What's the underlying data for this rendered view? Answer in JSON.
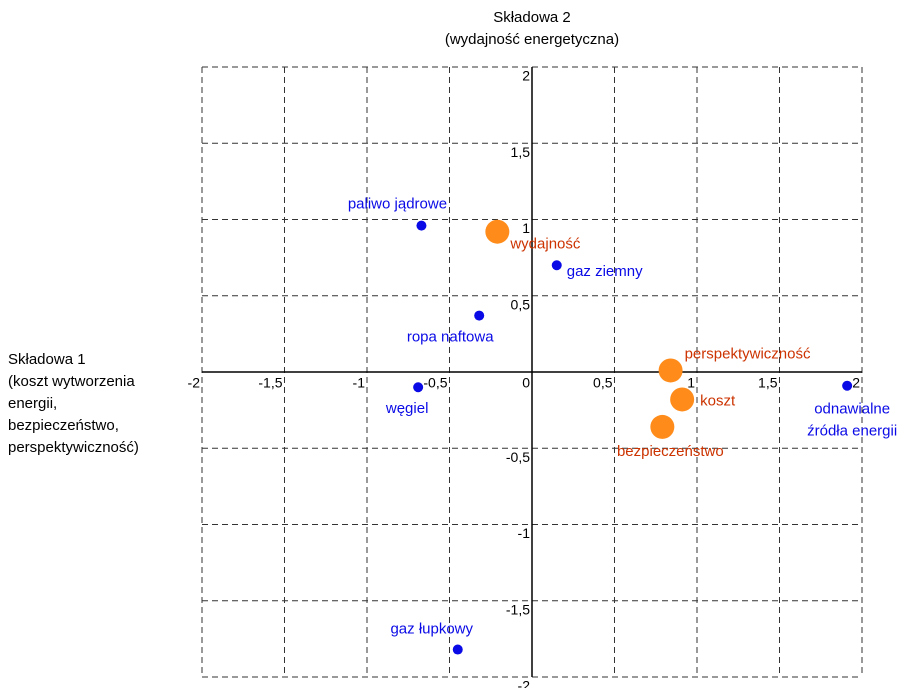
{
  "chart_data": {
    "type": "scatter",
    "title_lines": [
      "Składowa 2",
      "(wydajność energetyczna)"
    ],
    "xlabel_lines": [
      "Składowa 1",
      "(koszt wytworzenia",
      "energii,",
      "bezpieczeństwo,",
      "perspektywiczność)"
    ],
    "xlim": [
      -2,
      2
    ],
    "ylim": [
      -2,
      2
    ],
    "xticks": [
      -2,
      {
        "value": -1.5,
        "label": "-1,5"
      },
      -1,
      {
        "value": -0.5,
        "label": "-0,5"
      },
      0,
      {
        "value": 0.5,
        "label": "0,5"
      },
      1,
      {
        "value": 1.5,
        "label": "1,5"
      },
      2
    ],
    "yticks": [
      -2,
      {
        "value": -1.5,
        "label": "-1,5"
      },
      -1,
      {
        "value": -0.5,
        "label": "-0,5"
      },
      {
        "value": 0.5,
        "label": "0,5"
      },
      1,
      {
        "value": 1.5,
        "label": "1,5"
      },
      2
    ],
    "grid": true,
    "series": [
      {
        "color": "#0a0ae6",
        "label_color": "#0a0ae6",
        "x": [
          -0.67,
          0.15,
          -0.32,
          -0.69,
          1.91,
          -0.45
        ],
        "y": [
          0.96,
          0.7,
          0.37,
          -0.1,
          -0.09,
          -1.82
        ],
        "labels": [
          [
            "paliwo jądrowe"
          ],
          [
            "gaz ziemny"
          ],
          [
            "ropa naftowa"
          ],
          [
            "węgiel"
          ],
          [
            "odnawialne",
            "źródła energii"
          ],
          [
            "gaz łupkowy"
          ]
        ]
      },
      {
        "color": "#ff8c1a",
        "label_color": "#cc3300",
        "x": [
          -0.21,
          0.84,
          0.91,
          0.79
        ],
        "y": [
          0.92,
          0.01,
          -0.18,
          -0.36
        ],
        "labels": [
          [
            "wydajność"
          ],
          [
            "perspektywiczność"
          ],
          [
            "koszt"
          ],
          [
            "bezpieczeństwo"
          ]
        ]
      }
    ]
  }
}
